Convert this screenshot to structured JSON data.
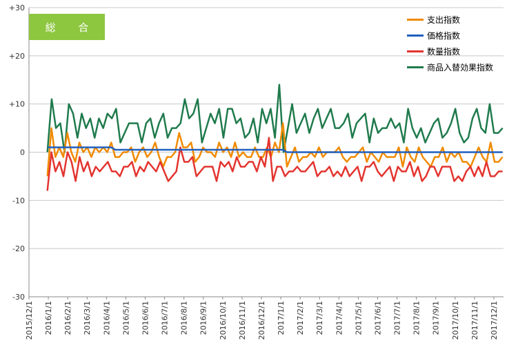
{
  "badge": {
    "label": "総 合"
  },
  "chart_data": {
    "type": "line",
    "ylim": [
      -30,
      30
    ],
    "yticks": [
      "+30",
      "+20",
      "+10",
      "0",
      "-10",
      "-20",
      "-30"
    ],
    "x_tick_labels": [
      "2015/12/1",
      "2016/1/1",
      "2016/2/1",
      "2016/3/1",
      "2016/4/1",
      "2016/5/1",
      "2016/6/1",
      "2016/7/1",
      "2016/8/1",
      "2016/9/1",
      "2016/10/1",
      "2016/11/1",
      "2016/12/1",
      "2017/1/1",
      "2017/2/1",
      "2017/3/1",
      "2017/4/1",
      "2017/5/1",
      "2017/6/1",
      "2017/7/1",
      "2017/8/1",
      "2017/9/1",
      "2017/10/1",
      "2017/11/1",
      "2017/12/1"
    ],
    "x_start_index": 0,
    "x_end_index": 24.5,
    "grid": "horizontal",
    "legend_position": "top-right",
    "series": [
      {
        "name": "支出指数",
        "color": "#f08a00",
        "values": [
          -5,
          5,
          -1,
          1,
          -1,
          4,
          0,
          -2,
          2,
          0,
          1,
          -1,
          1,
          0,
          1,
          0,
          2,
          -1,
          -1,
          0,
          0,
          1,
          -2,
          0,
          1,
          -1,
          0,
          2,
          -1,
          -3,
          -1,
          -1,
          0,
          4,
          1,
          1,
          2,
          -2,
          -1,
          1,
          0,
          0,
          -1,
          2,
          0,
          1,
          -1,
          2,
          -1,
          0,
          -1,
          -1,
          1,
          -1,
          -1,
          1,
          -1,
          2,
          0,
          6,
          -3,
          -1,
          1,
          -2,
          -1,
          -1,
          0,
          -1,
          1,
          -1,
          0,
          0,
          0,
          1,
          -1,
          -2,
          -1,
          -1,
          0,
          1,
          -2,
          0,
          -1,
          -2,
          0,
          -1,
          -1,
          -1,
          1,
          -3,
          1,
          -1,
          -2,
          1,
          -1,
          -2,
          -3,
          -1,
          -1,
          1,
          -2,
          0,
          -1,
          0,
          -2,
          -2,
          -3,
          -1,
          1,
          -1,
          -2,
          2,
          -2,
          -2,
          -1
        ]
      },
      {
        "name": "価格指数",
        "color": "#1f5fbf",
        "values": [
          1,
          1,
          1,
          1,
          1,
          1,
          1,
          1,
          1,
          1,
          1,
          1,
          1,
          1,
          1,
          1,
          1,
          0.5,
          0.5,
          0.5,
          0.5,
          0.5,
          0.5,
          0.5,
          0.5,
          0.5,
          0.5,
          0.5,
          0.5,
          0.5,
          0.5,
          0.5,
          0.5,
          0.5,
          0.5,
          0.5,
          0.5,
          0.5,
          0.5,
          0.5,
          0.5,
          0.5,
          0.5,
          0.5,
          0.5,
          0.5,
          0.5,
          0.5,
          0.5,
          0.5,
          0.5,
          0.5,
          0.5,
          0.5,
          0.5,
          0.5,
          0.5,
          0.5,
          0.5,
          0.5,
          0,
          0,
          0,
          0,
          0,
          0,
          0,
          0,
          0,
          0,
          0,
          0,
          0,
          0,
          0,
          0,
          0,
          0,
          0,
          0,
          0,
          0,
          0,
          0,
          0,
          0,
          0,
          0,
          0,
          0,
          0,
          0,
          0,
          0,
          0,
          0,
          0,
          0,
          0,
          0,
          0,
          0,
          0,
          0,
          0,
          0,
          0,
          0,
          0,
          0,
          0,
          0,
          0,
          0,
          0
        ]
      },
      {
        "name": "数量指数",
        "color": "#e3342f",
        "values": [
          -8,
          0,
          -4,
          -2,
          -5,
          0,
          -2,
          -6,
          -1,
          -4,
          -2,
          -5,
          -3,
          -4,
          -3,
          -2,
          -4,
          -4,
          -5,
          -3,
          -3,
          -2,
          -5,
          -3,
          -4,
          -2,
          -3,
          -4,
          -2,
          -4,
          -6,
          -5,
          -4,
          1,
          -2,
          -2,
          -1,
          -5,
          -4,
          -3,
          -3,
          -3,
          -6,
          -2,
          -3,
          -2,
          -4,
          -1,
          -3,
          -3,
          -2,
          -2,
          -4,
          -1,
          -3,
          3,
          -6,
          -3,
          -3,
          -5,
          -4,
          -4,
          -3,
          -4,
          -4,
          -3,
          -2,
          -5,
          -4,
          -4,
          -3,
          -5,
          -4,
          -5,
          -3,
          -5,
          -4,
          -3,
          -6,
          -3,
          -3,
          -2,
          -4,
          -5,
          -4,
          -3,
          -6,
          -3,
          -4,
          -4,
          -2,
          -5,
          -3,
          -6,
          -5,
          -3,
          -3,
          -5,
          -3,
          -3,
          -3,
          -6,
          -5,
          -6,
          -4,
          -3,
          -5,
          -3,
          -5,
          -2,
          -5,
          -5,
          -4,
          -4
        ]
      },
      {
        "name": "商品入替効果指数",
        "color": "#1f7a4c",
        "values": [
          0,
          11,
          5,
          6,
          0,
          10,
          8,
          3,
          8,
          5,
          7,
          3,
          7,
          5,
          8,
          7,
          9,
          2,
          4,
          6,
          6,
          6,
          2,
          6,
          7,
          3,
          6,
          8,
          3,
          5,
          5,
          6,
          11,
          7,
          8,
          11,
          2,
          5,
          8,
          6,
          9,
          3,
          9,
          9,
          6,
          7,
          3,
          4,
          7,
          2,
          9,
          6,
          9,
          3,
          14,
          0,
          5,
          10,
          4,
          6,
          8,
          4,
          7,
          9,
          5,
          7,
          9,
          5,
          5,
          6,
          8,
          3,
          6,
          7,
          8,
          2,
          7,
          4,
          5,
          5,
          7,
          5,
          6,
          2,
          9,
          5,
          3,
          5,
          2,
          4,
          6,
          7,
          3,
          4,
          6,
          9,
          4,
          2,
          3,
          7,
          9,
          5,
          4,
          10,
          4,
          4,
          5
        ]
      }
    ]
  }
}
